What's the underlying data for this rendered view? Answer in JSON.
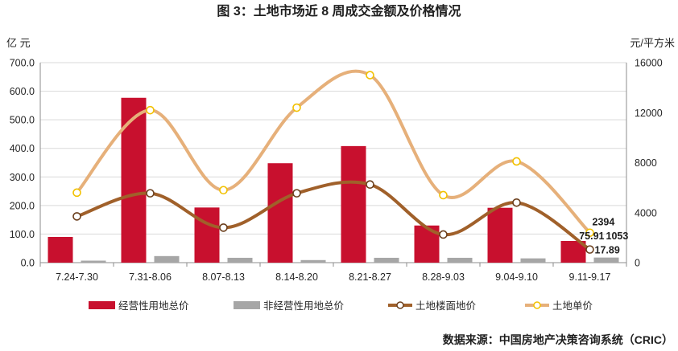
{
  "chart_data": {
    "type": "bar",
    "title": "图 3：土地市场近 8 周成交金额及价格情况",
    "y_left_unit": "亿 元",
    "y_right_unit": "元/平方米",
    "categories": [
      "7.24-7.30",
      "7.31-8.06",
      "8.07-8.13",
      "8.14-8.20",
      "8.21-8.27",
      "8.28-9.03",
      "9.04-9.10",
      "9.11-9.17"
    ],
    "y_left_ticks": [
      "0.0",
      "100.0",
      "200.0",
      "300.0",
      "400.0",
      "500.0",
      "600.0",
      "700.0"
    ],
    "y_right_ticks": [
      "0",
      "4000",
      "8000",
      "12000",
      "16000"
    ],
    "ylim_left": [
      0,
      700
    ],
    "ylim_right": [
      0,
      16000
    ],
    "series": [
      {
        "name": "经营性用地总价",
        "kind": "bar",
        "axis": "left",
        "color": "#c8102e",
        "values": [
          90,
          577,
          193,
          348,
          408,
          130,
          192,
          75.91
        ]
      },
      {
        "name": "非经营性用地总价",
        "kind": "bar",
        "axis": "left",
        "color": "#a6a6a6",
        "values": [
          7,
          23,
          17,
          9,
          17,
          17,
          15,
          17.89
        ]
      },
      {
        "name": "土地楼面地价",
        "kind": "line",
        "axis": "right",
        "color": "#a0602a",
        "values": [
          3700,
          5550,
          2800,
          5550,
          6250,
          2250,
          4800,
          1053
        ]
      },
      {
        "name": "土地单价",
        "kind": "line",
        "axis": "right",
        "color": "#e6b07a",
        "values": [
          5600,
          12200,
          5800,
          12400,
          15000,
          5400,
          8100,
          2394
        ]
      }
    ],
    "data_labels": [
      "2394",
      "75.91",
      "1053",
      "17.89"
    ],
    "legend_position": "bottom",
    "grid": true
  },
  "footer": {
    "source": "数据来源：中国房地产决策咨询系统（CRIC）"
  }
}
